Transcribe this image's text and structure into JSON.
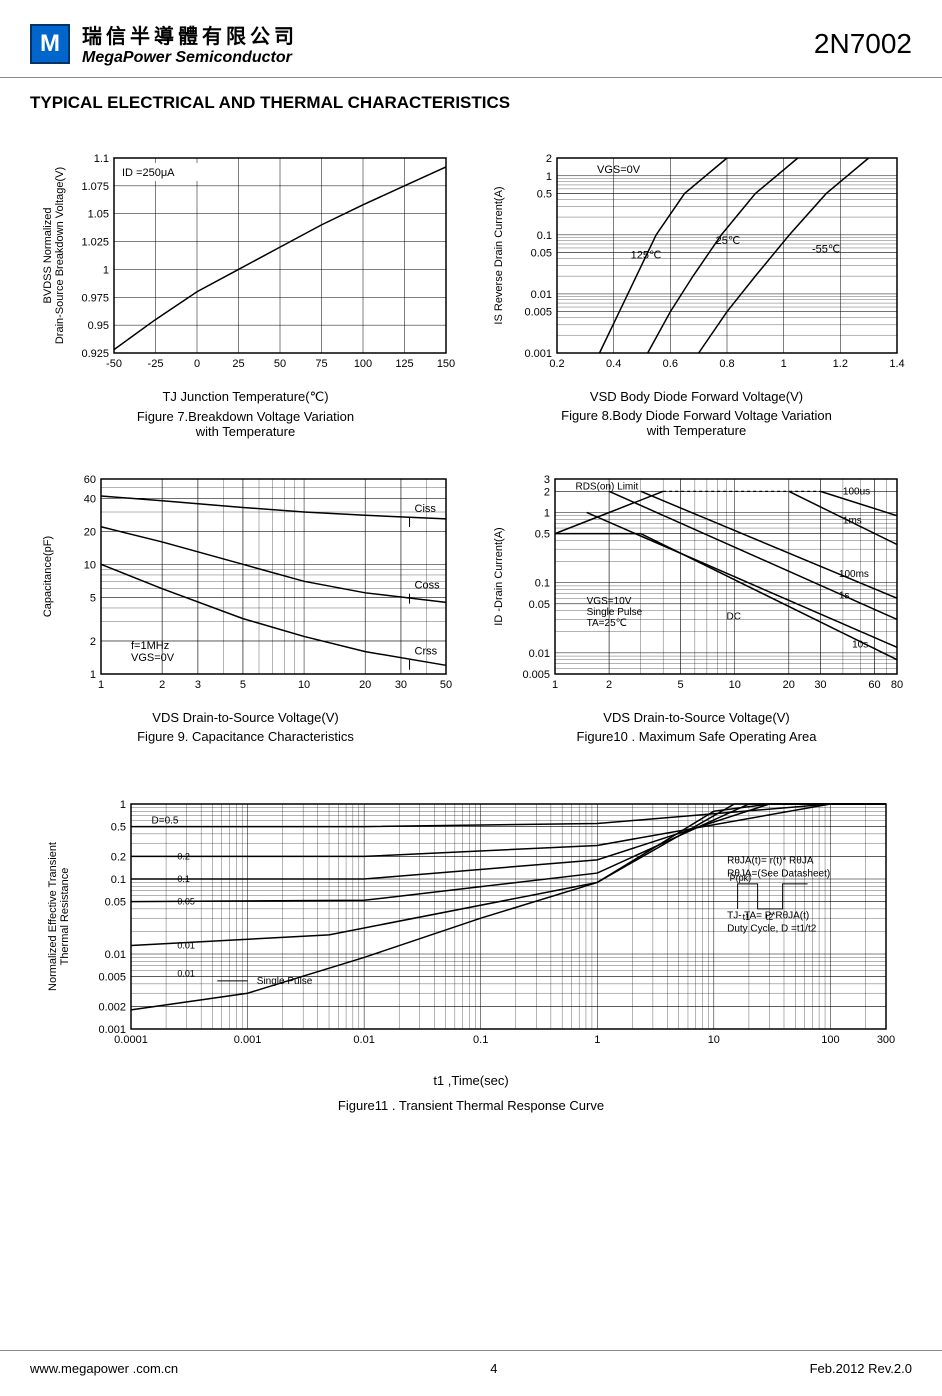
{
  "header": {
    "company_chinese": "瑞信半導體有限公司",
    "company_english": "MegaPower Semiconductor",
    "part_number": "2N7002",
    "logo_letter": "M"
  },
  "section_title": "TYPICAL ELECTRICAL AND THERMAL CHARACTERISTICS",
  "fig7": {
    "ylabel": "BVDSS Normalized\nDrain-Source Breakdown Voltage(V)",
    "xlabel": "TJ Junction Temperature(℃)",
    "caption": "Figure 7.Breakdown Voltage Variation\nwith Temperature",
    "annotation": "ID =250μA",
    "xticks": [
      "-50",
      "-25",
      "0",
      "25",
      "50",
      "75",
      "100",
      "125",
      "150"
    ],
    "yticks": [
      "0.925",
      "0.95",
      "0.975",
      "1",
      "1.025",
      "1.05",
      "1.075",
      "1.1"
    ],
    "xlim": [
      -50,
      150
    ],
    "ylim": [
      0.925,
      1.1
    ],
    "line": [
      [
        -50,
        0.928
      ],
      [
        -25,
        0.955
      ],
      [
        0,
        0.98
      ],
      [
        25,
        1.0
      ],
      [
        50,
        1.02
      ],
      [
        75,
        1.04
      ],
      [
        100,
        1.058
      ],
      [
        125,
        1.075
      ],
      [
        150,
        1.092
      ]
    ],
    "grid_color": "#000000",
    "line_color": "#000000",
    "bg": "#ffffff"
  },
  "fig8": {
    "ylabel": "IS Reverse Drain Current(A)",
    "xlabel": "VSD Body Diode Forward Voltage(V)",
    "caption": "Figure 8.Body Diode Forward Voltage Variation\nwith Temperature",
    "annotation": "VGS=0V",
    "xticks": [
      "0.2",
      "0.4",
      "0.6",
      "0.8",
      "1",
      "1.2",
      "1.4"
    ],
    "yticks": [
      "0.001",
      "0.005",
      "0.01",
      "0.05",
      "0.1",
      "0.5",
      "1",
      "2"
    ],
    "series_labels": [
      "125℃",
      "25℃",
      "-55℃"
    ],
    "xlim": [
      0.2,
      1.4
    ],
    "ylim_log": [
      0.001,
      2
    ],
    "lines": [
      [
        [
          0.35,
          0.001
        ],
        [
          0.42,
          0.005
        ],
        [
          0.48,
          0.02
        ],
        [
          0.55,
          0.1
        ],
        [
          0.65,
          0.5
        ],
        [
          0.8,
          2
        ]
      ],
      [
        [
          0.52,
          0.001
        ],
        [
          0.6,
          0.005
        ],
        [
          0.68,
          0.02
        ],
        [
          0.78,
          0.1
        ],
        [
          0.9,
          0.5
        ],
        [
          1.05,
          2
        ]
      ],
      [
        [
          0.7,
          0.001
        ],
        [
          0.8,
          0.005
        ],
        [
          0.9,
          0.02
        ],
        [
          1.02,
          0.1
        ],
        [
          1.15,
          0.5
        ],
        [
          1.3,
          2
        ]
      ]
    ],
    "grid_color": "#000000",
    "line_color": "#000000",
    "bg": "#ffffff"
  },
  "fig9": {
    "ylabel": "Capacitance(pF)",
    "xlabel": "VDS Drain-to-Source Voltage(V)",
    "caption": "Figure 9. Capacitance Characteristics",
    "annotation": "f=1MHz\nVGS=0V",
    "xticks": [
      "1",
      "2",
      "3",
      "5",
      "10",
      "20",
      "30",
      "50"
    ],
    "yticks": [
      "1",
      "2",
      "5",
      "10",
      "20",
      "40",
      "60"
    ],
    "series_labels": [
      "Ciss",
      "Coss",
      "Crss"
    ],
    "xlim_log": [
      1,
      50
    ],
    "ylim_log": [
      1,
      60
    ],
    "lines": [
      [
        [
          1,
          42
        ],
        [
          2,
          38
        ],
        [
          5,
          33
        ],
        [
          10,
          30
        ],
        [
          20,
          28
        ],
        [
          50,
          26
        ]
      ],
      [
        [
          1,
          22
        ],
        [
          2,
          16
        ],
        [
          5,
          10
        ],
        [
          10,
          7
        ],
        [
          20,
          5.5
        ],
        [
          50,
          4.5
        ]
      ],
      [
        [
          1,
          10
        ],
        [
          2,
          6
        ],
        [
          5,
          3.2
        ],
        [
          10,
          2.2
        ],
        [
          20,
          1.6
        ],
        [
          50,
          1.2
        ]
      ]
    ],
    "grid_color": "#000000",
    "line_color": "#000000",
    "bg": "#ffffff"
  },
  "fig10": {
    "ylabel": "ID -Drain Current(A)",
    "xlabel": "VDS Drain-to-Source Voltage(V)",
    "caption": "Figure10 . Maximum Safe Operating Area",
    "annotation": "VGS=10V\nSingle Pulse\nTA=25℃",
    "xticks": [
      "1",
      "2",
      "5",
      "10",
      "20",
      "30",
      "60",
      "80"
    ],
    "yticks": [
      "0.005",
      "0.01",
      "0.05",
      "0.1",
      "0.5",
      "1",
      "2",
      "3"
    ],
    "rds_label": "RDS(on) Limit",
    "dc_label": "DC",
    "series_labels": [
      "100us",
      "1ms",
      "100ms",
      "1s",
      "10s"
    ],
    "xlim_log": [
      1,
      80
    ],
    "ylim_log": [
      0.005,
      3
    ],
    "rds_line": [
      [
        1,
        0.5
      ],
      [
        2,
        1
      ],
      [
        4,
        2
      ]
    ],
    "limit_line": [
      [
        4,
        2
      ],
      [
        30,
        2
      ]
    ],
    "pulse_lines": [
      [
        [
          30,
          2
        ],
        [
          80,
          0.9
        ]
      ],
      [
        [
          20,
          2
        ],
        [
          80,
          0.35
        ]
      ],
      [
        [
          3,
          2
        ],
        [
          80,
          0.06
        ]
      ],
      [
        [
          2,
          2
        ],
        [
          80,
          0.03
        ]
      ],
      [
        [
          1.5,
          1
        ],
        [
          80,
          0.012
        ]
      ]
    ],
    "dc_line": [
      [
        1,
        0.5
      ],
      [
        3,
        0.5
      ],
      [
        80,
        0.008
      ]
    ],
    "grid_color": "#000000",
    "line_color": "#000000",
    "bg": "#ffffff"
  },
  "fig11": {
    "ylabel": "Normalized Effective Transient\nThermal Resistance",
    "xlabel": "t1 ,Time(sec)",
    "caption": "Figure11 . Transient  Thermal Response Curve",
    "annotation_sp": "Single Pulse",
    "annotation_d": "D=0.5",
    "xticks": [
      "0.0001",
      "0.001",
      "0.01",
      "0.1",
      "1",
      "10",
      "100",
      "300"
    ],
    "yticks": [
      "0.001",
      "0.002",
      "0.005",
      "0.01",
      "0.05",
      "0.1",
      "0.2",
      "0.5",
      "1"
    ],
    "d_labels": [
      "0.5",
      "0.2",
      "0.1",
      "0.05",
      "0.01",
      "0.01"
    ],
    "formula_lines": [
      "RθJA(t)= r(t)* RθJA",
      "RθJA=(See Datasheet)",
      "TJ- TA= P*RθJA(t)",
      "Duty Cycle, D =t1/t2"
    ],
    "pulse_labels": [
      "P(pk)",
      "t1",
      "t2"
    ],
    "xlim_log": [
      0.0001,
      300
    ],
    "ylim_log": [
      0.001,
      1
    ],
    "lines": [
      [
        [
          0.0001,
          0.5
        ],
        [
          0.01,
          0.5
        ],
        [
          1,
          0.55
        ],
        [
          100,
          1
        ],
        [
          300,
          1
        ]
      ],
      [
        [
          0.0001,
          0.2
        ],
        [
          0.01,
          0.2
        ],
        [
          1,
          0.28
        ],
        [
          100,
          1
        ],
        [
          300,
          1
        ]
      ],
      [
        [
          0.0001,
          0.1
        ],
        [
          0.01,
          0.1
        ],
        [
          1,
          0.18
        ],
        [
          30,
          1
        ],
        [
          300,
          1
        ]
      ],
      [
        [
          0.0001,
          0.05
        ],
        [
          0.01,
          0.052
        ],
        [
          1,
          0.12
        ],
        [
          20,
          1
        ],
        [
          300,
          1
        ]
      ],
      [
        [
          0.0001,
          0.013
        ],
        [
          0.005,
          0.018
        ],
        [
          1,
          0.09
        ],
        [
          15,
          1
        ],
        [
          300,
          1
        ]
      ],
      [
        [
          0.0001,
          0.0018
        ],
        [
          0.001,
          0.003
        ],
        [
          0.01,
          0.009
        ],
        [
          0.1,
          0.03
        ],
        [
          1,
          0.09
        ],
        [
          10,
          0.8
        ],
        [
          30,
          1
        ],
        [
          300,
          1
        ]
      ]
    ],
    "grid_color": "#000000",
    "line_color": "#000000",
    "bg": "#ffffff"
  },
  "footer": {
    "url": "www.megapower .com.cn",
    "page": "4",
    "date": "Feb.2012 Rev.2.0"
  }
}
